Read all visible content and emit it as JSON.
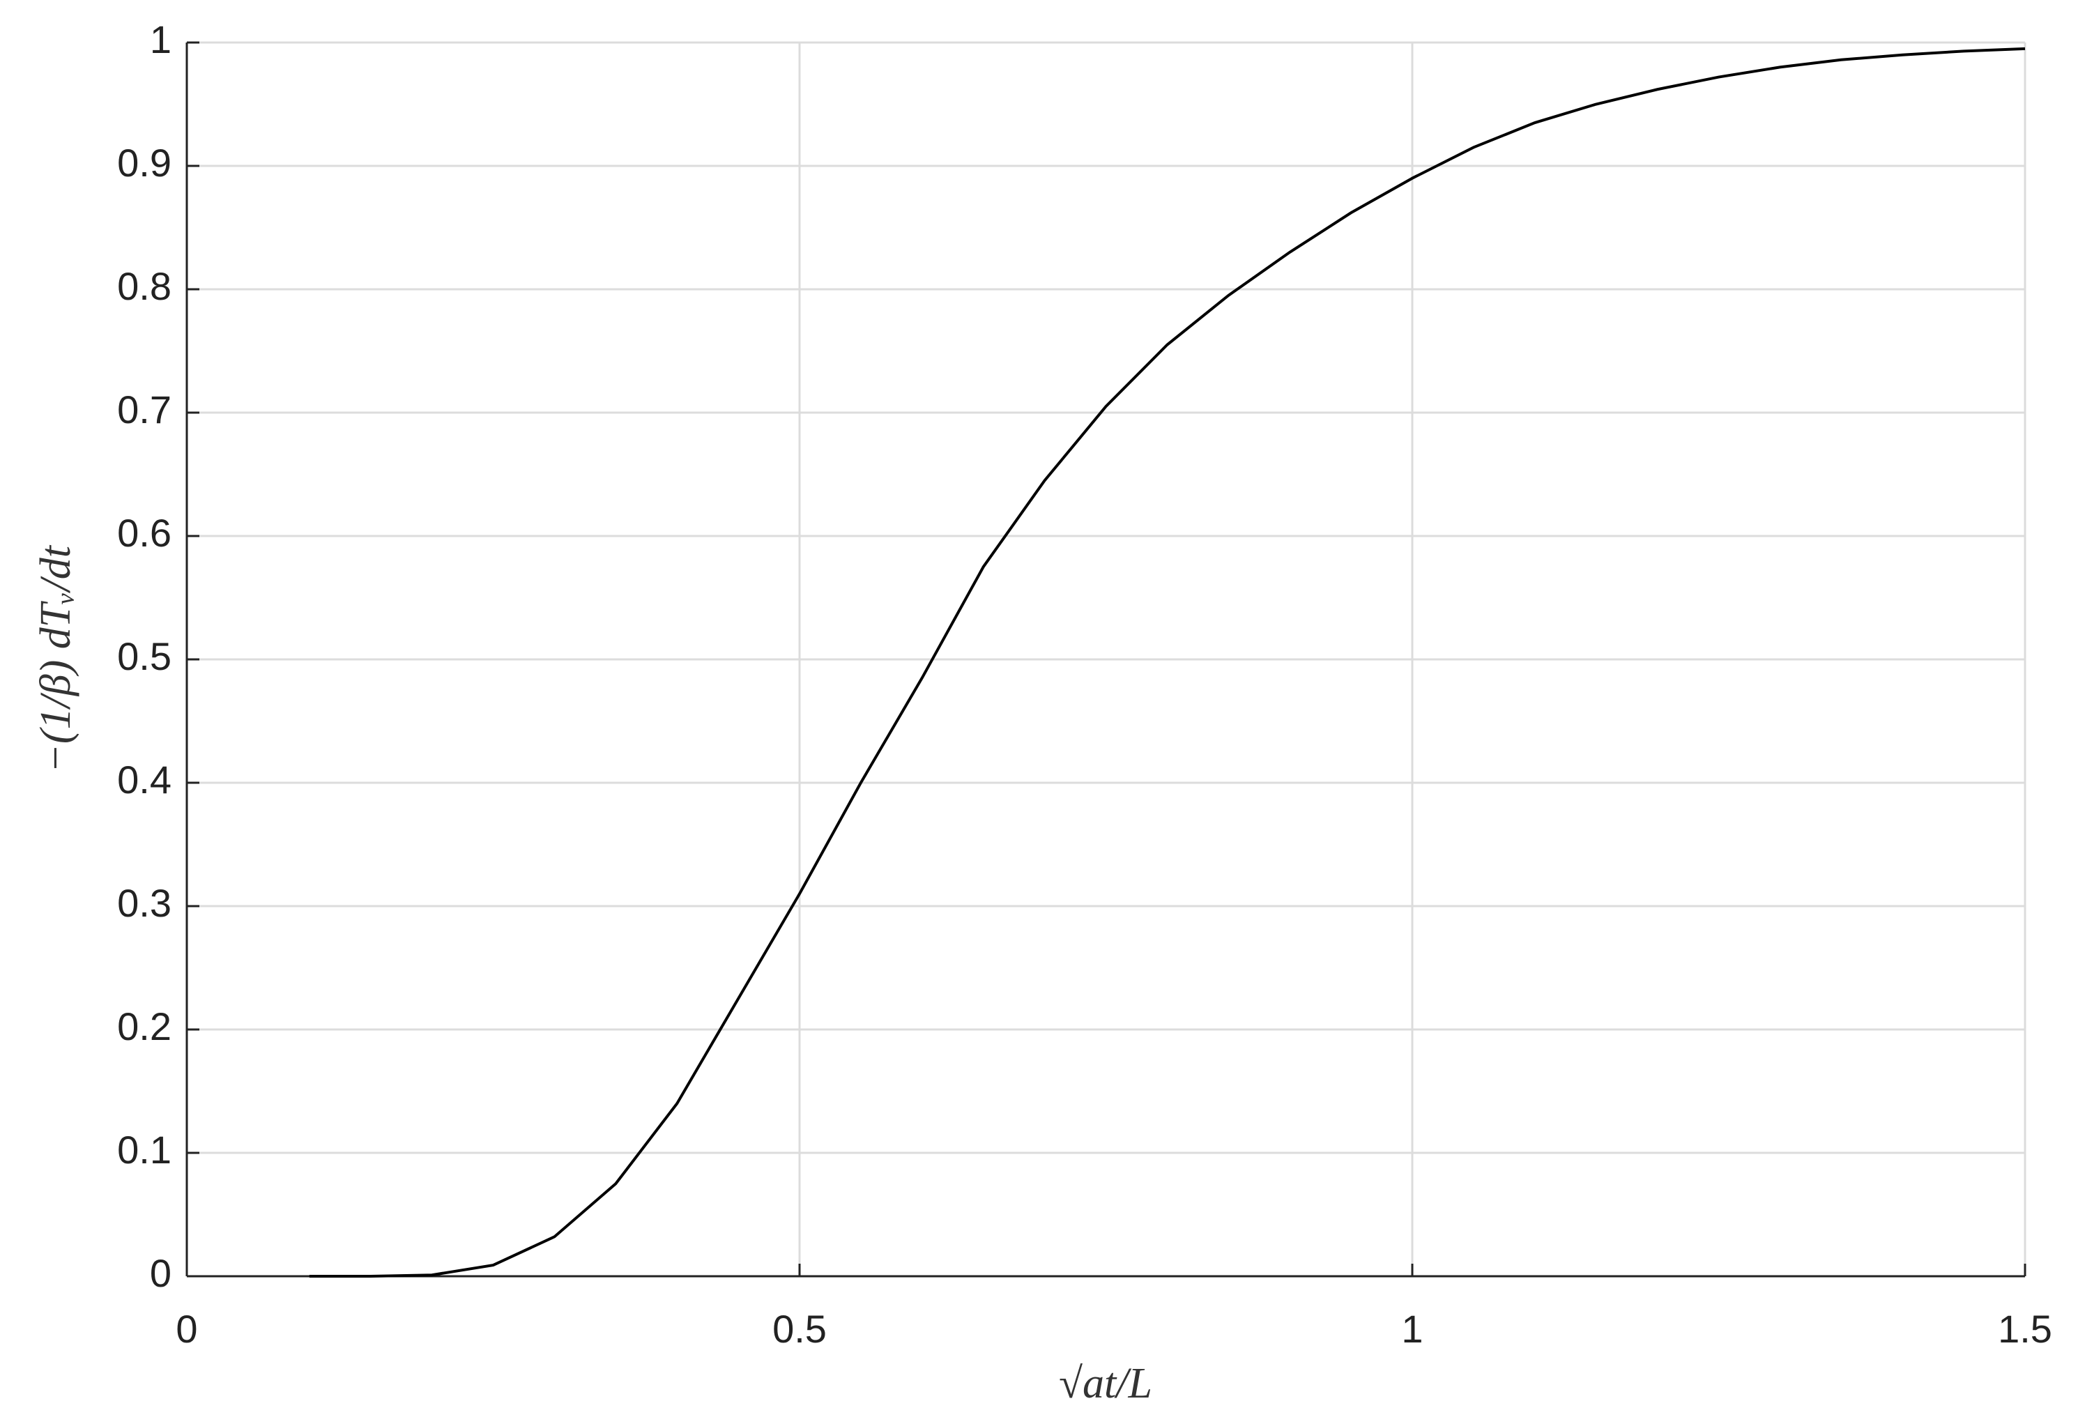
{
  "chart_data": {
    "type": "line",
    "xlabel": "√at/L",
    "ylabel": "−(1/β) dTᵥ/dt",
    "x": [
      0.1,
      0.15,
      0.2,
      0.25,
      0.3,
      0.35,
      0.4,
      0.45,
      0.5,
      0.55,
      0.6,
      0.65,
      0.7,
      0.75,
      0.8,
      0.85,
      0.9,
      0.95,
      1.0,
      1.05,
      1.1,
      1.15,
      1.2,
      1.25,
      1.3,
      1.35,
      1.4,
      1.45,
      1.5
    ],
    "series": [
      {
        "color": "#000000",
        "values": [
          0,
          0,
          0.001,
          0.009,
          0.032,
          0.075,
          0.14,
          0.225,
          0.31,
          0.4,
          0.485,
          0.575,
          0.645,
          0.705,
          0.755,
          0.795,
          0.83,
          0.862,
          0.89,
          0.915,
          0.935,
          0.95,
          0.962,
          0.972,
          0.98,
          0.986,
          0.99,
          0.993,
          0.995
        ]
      }
    ],
    "xlim": [
      0,
      1.5
    ],
    "ylim": [
      0,
      1
    ],
    "xticks": [
      0,
      0.5,
      1,
      1.5
    ],
    "yticks": [
      0,
      0.1,
      0.2,
      0.3,
      0.4,
      0.5,
      0.6,
      0.7,
      0.8,
      0.9,
      1
    ],
    "grid": true
  }
}
